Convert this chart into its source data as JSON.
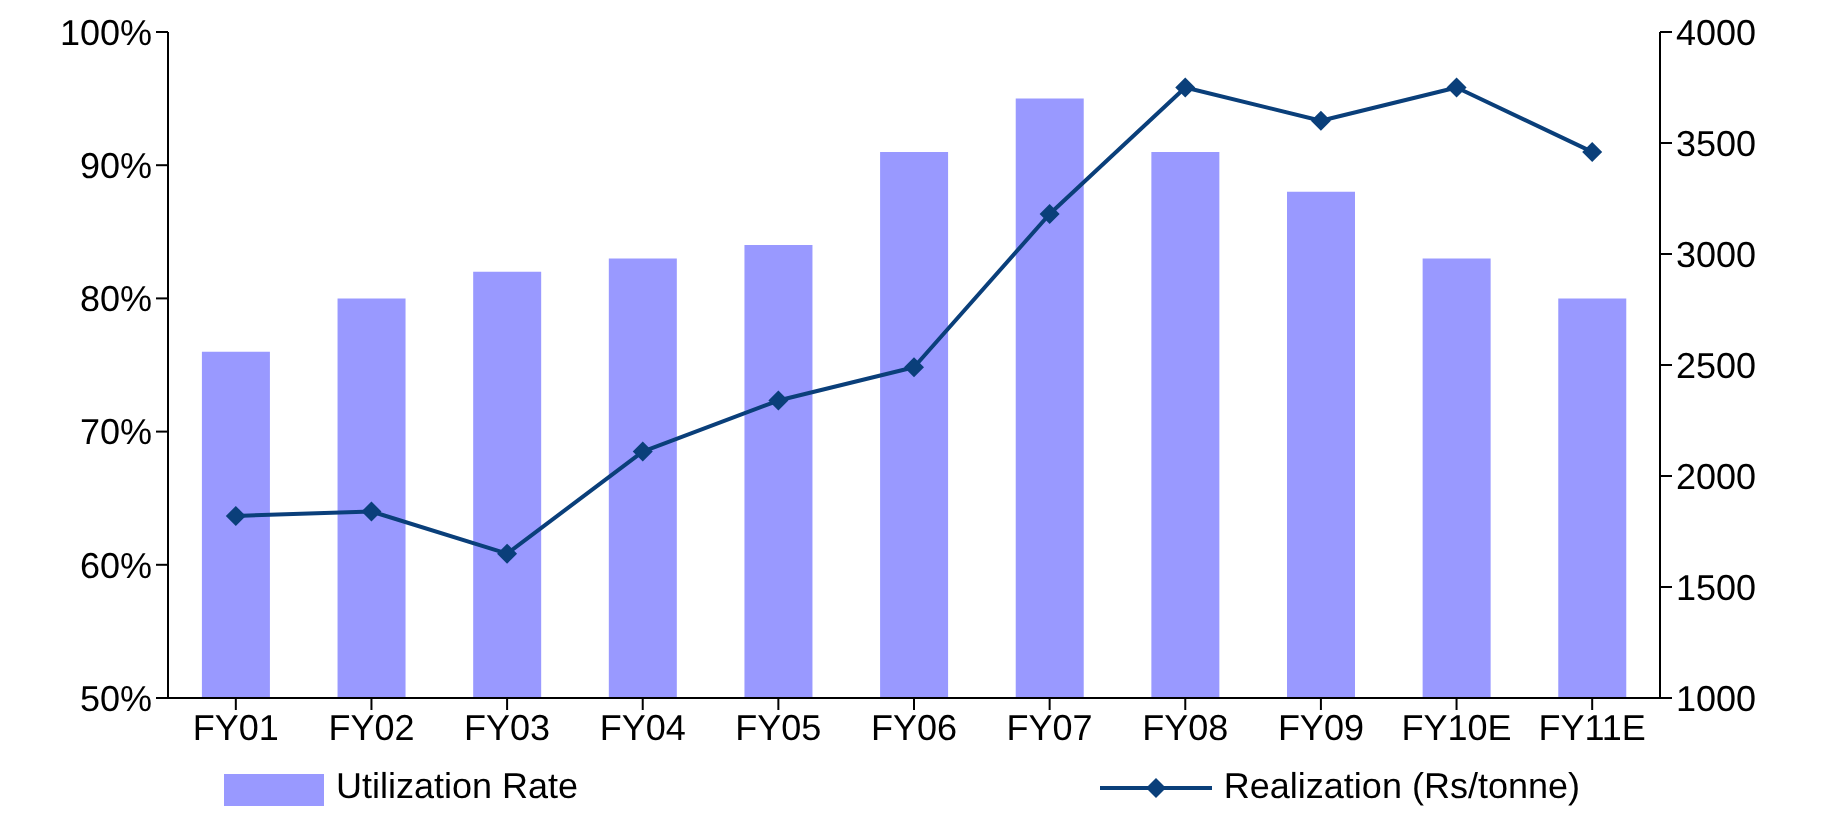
{
  "chart_data": {
    "type": "bar",
    "categories": [
      "FY01",
      "FY02",
      "FY03",
      "FY04",
      "FY05",
      "FY06",
      "FY07",
      "FY08",
      "FY09",
      "FY10E",
      "FY11E"
    ],
    "series": [
      {
        "name": "Utilization Rate",
        "color": "#9999ff",
        "values": [
          76,
          80,
          82,
          83,
          84,
          91,
          95,
          91,
          88,
          83,
          80
        ]
      },
      {
        "name": "Realization (Rs/tonne)",
        "type": "line",
        "axis": "y2",
        "color": "#0a3f7a",
        "marker": "diamond",
        "values": [
          1820,
          1840,
          1650,
          2110,
          2340,
          2490,
          3180,
          3750,
          3600,
          3750,
          3460
        ]
      }
    ],
    "ylim": [
      50,
      100
    ],
    "yticks": [
      {
        "value": 50,
        "label": "50%"
      },
      {
        "value": 60,
        "label": "60%"
      },
      {
        "value": 70,
        "label": "70%"
      },
      {
        "value": 80,
        "label": "80%"
      },
      {
        "value": 90,
        "label": "90%"
      },
      {
        "value": 100,
        "label": "100%"
      }
    ],
    "y2lim": [
      1000,
      4000
    ],
    "y2ticks": [
      1000,
      1500,
      2000,
      2500,
      3000,
      3500,
      4000
    ],
    "grid": false,
    "legend": "bottom"
  }
}
